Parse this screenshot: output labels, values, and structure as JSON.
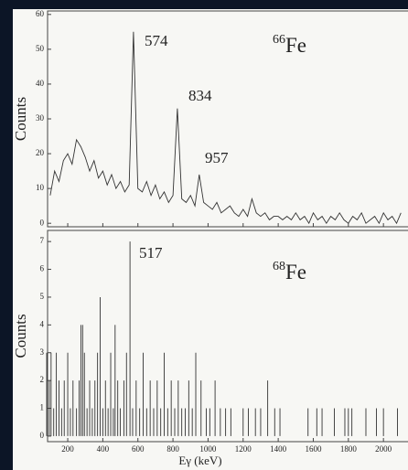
{
  "chart_data": [
    {
      "type": "line",
      "ylabel": "Counts",
      "isotope": {
        "mass": "66",
        "element": "Fe"
      },
      "annotations": [
        "574",
        "834",
        "957"
      ],
      "color": "#333333",
      "xlim": [
        85,
        2140
      ],
      "ylim": [
        -1,
        61
      ],
      "yticks": [
        0,
        10,
        20,
        30,
        40,
        50,
        60
      ],
      "x": [
        100,
        125,
        150,
        175,
        200,
        225,
        250,
        275,
        300,
        325,
        350,
        375,
        400,
        425,
        450,
        475,
        500,
        525,
        550,
        575,
        600,
        625,
        650,
        675,
        700,
        725,
        750,
        775,
        800,
        825,
        850,
        875,
        900,
        925,
        950,
        975,
        1000,
        1025,
        1050,
        1075,
        1100,
        1125,
        1150,
        1175,
        1200,
        1225,
        1250,
        1275,
        1300,
        1325,
        1350,
        1375,
        1400,
        1425,
        1450,
        1475,
        1500,
        1525,
        1550,
        1575,
        1600,
        1625,
        1650,
        1675,
        1700,
        1725,
        1750,
        1775,
        1800,
        1825,
        1850,
        1875,
        1900,
        1925,
        1950,
        1975,
        2000,
        2025,
        2050,
        2075,
        2100
      ],
      "values": [
        8,
        15,
        12,
        18,
        20,
        17,
        24,
        22,
        19,
        15,
        18,
        13,
        15,
        11,
        14,
        10,
        12,
        9,
        11,
        55,
        10,
        9,
        12,
        8,
        11,
        7,
        9,
        6,
        8,
        33,
        7,
        6,
        8,
        5,
        14,
        6,
        5,
        4,
        6,
        3,
        4,
        5,
        3,
        2,
        4,
        2,
        7,
        3,
        2,
        3,
        1,
        2,
        2,
        1,
        2,
        1,
        3,
        1,
        2,
        0,
        3,
        1,
        2,
        0,
        2,
        1,
        3,
        1,
        0,
        2,
        1,
        3,
        0,
        1,
        2,
        0,
        3,
        1,
        2,
        0,
        3
      ]
    },
    {
      "type": "bar",
      "ylabel": "Counts",
      "xlabel": "Eγ (keV)",
      "isotope": {
        "mass": "68",
        "element": "Fe"
      },
      "annotations": [
        "517"
      ],
      "color": "#333333",
      "xlim": [
        85,
        2140
      ],
      "ylim": [
        -0.2,
        7.4
      ],
      "yticks": [
        0,
        1,
        2,
        3,
        4,
        5,
        6,
        7
      ],
      "xticks": [
        200,
        400,
        600,
        800,
        1000,
        1200,
        1400,
        1600,
        1800,
        2000
      ],
      "x": [
        80,
        95,
        105,
        120,
        135,
        150,
        165,
        180,
        200,
        215,
        230,
        250,
        265,
        275,
        285,
        295,
        310,
        325,
        340,
        355,
        370,
        385,
        400,
        415,
        430,
        445,
        460,
        470,
        485,
        500,
        520,
        535,
        555,
        570,
        590,
        610,
        630,
        650,
        670,
        690,
        710,
        730,
        750,
        770,
        790,
        810,
        830,
        850,
        870,
        890,
        910,
        930,
        960,
        990,
        1010,
        1040,
        1070,
        1100,
        1130,
        1200,
        1230,
        1270,
        1300,
        1340,
        1380,
        1410,
        1570,
        1620,
        1650,
        1720,
        1780,
        1800,
        1820,
        1900,
        1960,
        2000,
        2080
      ],
      "values": [
        3,
        2,
        3,
        1,
        3,
        2,
        1,
        2,
        3,
        1,
        2,
        1,
        2,
        4,
        4,
        3,
        1,
        2,
        1,
        2,
        3,
        5,
        1,
        2,
        1,
        3,
        1,
        4,
        2,
        1,
        2,
        3,
        7,
        1,
        2,
        1,
        3,
        1,
        2,
        1,
        2,
        1,
        3,
        1,
        2,
        1,
        2,
        1,
        1,
        2,
        1,
        3,
        2,
        1,
        1,
        2,
        1,
        1,
        1,
        1,
        1,
        1,
        1,
        2,
        1,
        1,
        1,
        1,
        1,
        1,
        1,
        1,
        1,
        1,
        1,
        1,
        1
      ]
    }
  ]
}
